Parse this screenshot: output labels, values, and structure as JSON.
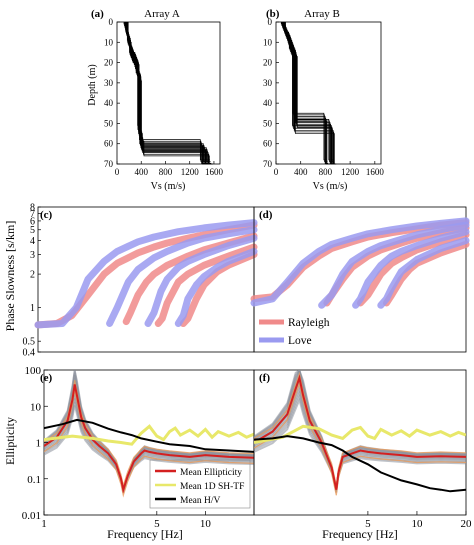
{
  "chart_data": [
    {
      "panel": "(a)",
      "title": "Array A",
      "type": "line",
      "xlabel": "Vs (m/s)",
      "ylabel": "Depth (m)",
      "xlim": [
        0,
        1700
      ],
      "ylim": [
        70,
        0
      ],
      "xticks": [
        0,
        400,
        800,
        1200,
        1600
      ],
      "yticks": [
        0,
        10,
        20,
        30,
        40,
        50,
        60,
        70
      ],
      "profiles": [
        {
          "vs": [
            150,
            170,
            200,
            240,
            330,
            370,
            400,
            1450,
            1520
          ],
          "depth": [
            0,
            4,
            7,
            12,
            18,
            25,
            55,
            62,
            70
          ]
        },
        {
          "vs": [
            160,
            180,
            210,
            260,
            340,
            380,
            420,
            1500,
            1560
          ],
          "depth": [
            0,
            5,
            8,
            13,
            19,
            27,
            57,
            64,
            70
          ]
        },
        {
          "vs": [
            140,
            165,
            195,
            230,
            320,
            365,
            395,
            1400,
            1480
          ],
          "depth": [
            0,
            3,
            6,
            11,
            17,
            24,
            53,
            60,
            70
          ]
        }
      ]
    },
    {
      "panel": "(b)",
      "title": "Array B",
      "type": "line",
      "xlabel": "Vs (m/s)",
      "xlim": [
        0,
        1700
      ],
      "ylim": [
        70,
        0
      ],
      "xticks": [
        0,
        400,
        800,
        1200,
        1600
      ],
      "yticks": [
        0,
        10,
        20,
        30,
        40,
        50,
        60,
        70
      ],
      "profiles": [
        {
          "vs": [
            120,
            170,
            230,
            300,
            800,
            850
          ],
          "depth": [
            0,
            3,
            7,
            13,
            47,
            70
          ]
        },
        {
          "vs": [
            130,
            180,
            240,
            320,
            880,
            900
          ],
          "depth": [
            0,
            4,
            8,
            15,
            50,
            70
          ]
        },
        {
          "vs": [
            110,
            160,
            220,
            290,
            920,
            950
          ],
          "depth": [
            0,
            3,
            7,
            12,
            53,
            70
          ]
        }
      ]
    },
    {
      "panel": "(c)",
      "type": "line",
      "xscale": "log",
      "yscale": "log",
      "xlim": [
        1,
        20
      ],
      "ylim": [
        0.4,
        8
      ],
      "ylabel": "Phase Slowness [s/km]",
      "yticks": [
        0.4,
        0.5,
        1,
        2,
        3,
        4,
        5,
        6,
        7,
        8
      ],
      "series": [
        {
          "name": "Rayleigh",
          "color": "#f08a8a",
          "bands": [
            {
              "x": [
                1,
                1.3,
                1.6,
                2,
                2.5,
                3,
                4,
                5,
                6,
                8,
                10,
                14,
                20
              ],
              "y": [
                0.7,
                0.72,
                0.85,
                1.3,
                2.0,
                2.5,
                3.1,
                3.5,
                3.8,
                4.2,
                4.5,
                5.0,
                5.5
              ]
            },
            {
              "x": [
                3.4,
                3.6,
                4,
                4.5,
                5,
                6,
                8,
                10,
                14,
                20
              ],
              "y": [
                0.75,
                0.9,
                1.3,
                1.7,
                2.0,
                2.4,
                2.9,
                3.3,
                3.8,
                4.4
              ]
            },
            {
              "x": [
                5.3,
                5.6,
                6,
                7,
                8,
                10,
                14,
                20
              ],
              "y": [
                0.72,
                0.8,
                1.1,
                1.7,
                2.0,
                2.4,
                2.9,
                3.5
              ]
            },
            {
              "x": [
                7.5,
                8,
                9,
                10,
                12,
                14,
                20
              ],
              "y": [
                0.72,
                0.8,
                1.2,
                1.6,
                2.1,
                2.4,
                3.0
              ]
            }
          ]
        },
        {
          "name": "Love",
          "color": "#9a9af0",
          "bands": [
            {
              "x": [
                1,
                1.4,
                1.7,
                2,
                2.5,
                3,
                4,
                5,
                7,
                10,
                14,
                20
              ],
              "y": [
                0.7,
                0.72,
                1.0,
                1.8,
                2.6,
                3.2,
                3.9,
                4.3,
                4.8,
                5.2,
                5.5,
                5.8
              ]
            },
            {
              "x": [
                2.7,
                3,
                3.5,
                4,
                5,
                6,
                8,
                10,
                14,
                20
              ],
              "y": [
                0.72,
                1.0,
                1.7,
                2.2,
                2.8,
                3.2,
                3.8,
                4.2,
                4.6,
                5.0
              ]
            },
            {
              "x": [
                4.6,
                5,
                5.5,
                6,
                7,
                8,
                10,
                14,
                20
              ],
              "y": [
                0.72,
                0.9,
                1.4,
                1.8,
                2.3,
                2.6,
                3.0,
                3.6,
                4.2
              ]
            },
            {
              "x": [
                7,
                7.5,
                8,
                9,
                10,
                12,
                14,
                20
              ],
              "y": [
                0.72,
                0.85,
                1.2,
                1.6,
                1.9,
                2.3,
                2.6,
                3.2
              ]
            }
          ]
        }
      ]
    },
    {
      "panel": "(d)",
      "type": "line",
      "xscale": "log",
      "yscale": "log",
      "xlim": [
        1,
        20
      ],
      "ylim": [
        0.4,
        8
      ],
      "legend": {
        "position": "bottom-left",
        "entries": [
          "Rayleigh",
          "Love"
        ]
      },
      "series": [
        {
          "name": "Rayleigh",
          "color": "#f08a8a",
          "bands": [
            {
              "x": [
                1,
                1.3,
                1.6,
                2,
                2.5,
                3,
                4,
                5,
                7,
                10,
                14,
                20
              ],
              "y": [
                1.2,
                1.25,
                1.6,
                2.3,
                2.9,
                3.4,
                3.9,
                4.3,
                4.7,
                5.1,
                5.5,
                5.8
              ]
            },
            {
              "x": [
                2.8,
                3,
                3.5,
                4,
                5,
                6,
                8,
                10,
                14,
                20
              ],
              "y": [
                1.1,
                1.3,
                1.8,
                2.3,
                2.9,
                3.3,
                3.8,
                4.2,
                4.7,
                5.2
              ]
            },
            {
              "x": [
                4.5,
                5,
                6,
                7,
                8,
                10,
                14,
                20
              ],
              "y": [
                1.1,
                1.3,
                2.0,
                2.5,
                2.8,
                3.3,
                3.9,
                4.5
              ]
            },
            {
              "x": [
                6.5,
                7,
                8,
                9,
                10,
                14,
                20
              ],
              "y": [
                1.1,
                1.3,
                1.8,
                2.2,
                2.5,
                3.1,
                3.7
              ]
            }
          ]
        },
        {
          "name": "Love",
          "color": "#9a9af0",
          "bands": [
            {
              "x": [
                1,
                1.3,
                1.6,
                2,
                2.5,
                3,
                4,
                5,
                7,
                10,
                14,
                20
              ],
              "y": [
                1.1,
                1.2,
                1.7,
                2.5,
                3.2,
                3.7,
                4.2,
                4.6,
                5.0,
                5.4,
                5.7,
                6.0
              ]
            },
            {
              "x": [
                2.6,
                3,
                3.5,
                4,
                5,
                6,
                8,
                10,
                14,
                20
              ],
              "y": [
                1.05,
                1.3,
                2.0,
                2.6,
                3.2,
                3.6,
                4.1,
                4.5,
                5.0,
                5.5
              ]
            },
            {
              "x": [
                4.2,
                4.5,
                5,
                6,
                7,
                8,
                10,
                14,
                20
              ],
              "y": [
                1.05,
                1.2,
                1.7,
                2.4,
                2.9,
                3.2,
                3.6,
                4.2,
                4.8
              ]
            },
            {
              "x": [
                6,
                6.5,
                7,
                8,
                10,
                14,
                20
              ],
              "y": [
                1.05,
                1.2,
                1.5,
                2.1,
                2.7,
                3.4,
                4.0
              ]
            }
          ]
        }
      ]
    },
    {
      "panel": "(e)",
      "type": "line",
      "xscale": "log",
      "yscale": "log",
      "xlim": [
        1,
        20
      ],
      "ylim": [
        0.01,
        100
      ],
      "xlabel": "Frequency [Hz]",
      "ylabel": "Ellipticity",
      "xticks": [
        1,
        5,
        10
      ],
      "yticks": [
        0.01,
        0.1,
        1,
        10,
        100
      ],
      "legend": {
        "position": "bottom-center",
        "entries": [
          "Mean Ellipticity",
          "Mean 1D SH-TF",
          "Mean H/V"
        ]
      },
      "series": [
        {
          "name": "Mean Ellipticity",
          "color": "#d42020",
          "x": [
            1,
            1.2,
            1.4,
            1.5,
            1.55,
            1.6,
            1.7,
            1.8,
            2,
            2.2,
            2.5,
            2.8,
            3,
            3.1,
            3.3,
            3.6,
            4,
            4.2,
            4.5,
            5,
            6,
            8,
            10,
            14,
            20
          ],
          "y": [
            0.8,
            1.4,
            4,
            15,
            40,
            20,
            5,
            2.5,
            1.2,
            0.8,
            0.5,
            0.25,
            0.1,
            0.05,
            0.12,
            0.3,
            0.5,
            0.6,
            0.55,
            0.5,
            0.45,
            0.4,
            0.45,
            0.4,
            0.38
          ]
        },
        {
          "name": "Mean 1D SH-TF",
          "color": "#e8e86a",
          "x": [
            1,
            1.5,
            2,
            2.5,
            3,
            3.5,
            4,
            4.5,
            5,
            5.5,
            6,
            6.5,
            7,
            8,
            9,
            10,
            11,
            12,
            14,
            16,
            18,
            20
          ],
          "y": [
            1.2,
            1.5,
            1.3,
            1.1,
            1.0,
            0.9,
            1.8,
            2.8,
            1.5,
            1.2,
            2.0,
            2.5,
            1.6,
            2.2,
            1.5,
            2.3,
            1.4,
            2.0,
            1.5,
            1.9,
            1.4,
            1.7
          ]
        },
        {
          "name": "Mean H/V",
          "color": "#000000",
          "x": [
            1,
            1.3,
            1.6,
            2,
            2.5,
            3,
            3.5,
            4,
            5,
            6,
            8,
            10,
            14,
            20
          ],
          "y": [
            2.5,
            3.2,
            4.2,
            3.5,
            2.4,
            1.9,
            1.6,
            1.3,
            1.05,
            0.9,
            0.8,
            0.65,
            0.6,
            0.55
          ]
        }
      ]
    },
    {
      "panel": "(f)",
      "type": "line",
      "xscale": "log",
      "yscale": "log",
      "xlim": [
        1,
        20
      ],
      "ylim": [
        0.01,
        100
      ],
      "xlabel": "Frequency [Hz]",
      "xticks": [
        1,
        5,
        10,
        20
      ],
      "series": [
        {
          "name": "Mean Ellipticity",
          "color": "#d42020",
          "x": [
            1,
            1.3,
            1.6,
            1.8,
            1.9,
            2,
            2.2,
            2.6,
            3,
            3.2,
            3.3,
            3.5,
            4,
            4.5,
            5,
            6,
            8,
            10,
            14,
            20
          ],
          "y": [
            1.0,
            2.0,
            6,
            30,
            60,
            20,
            4,
            1.0,
            0.2,
            0.05,
            0.15,
            0.4,
            0.5,
            0.6,
            0.55,
            0.5,
            0.45,
            0.4,
            0.42,
            0.4
          ]
        },
        {
          "name": "Mean 1D SH-TF",
          "color": "#e8e86a",
          "x": [
            1,
            1.5,
            2,
            2.5,
            3,
            3.5,
            4,
            4.5,
            5,
            5.5,
            6,
            7,
            8,
            9,
            10,
            12,
            14,
            16,
            18,
            20
          ],
          "y": [
            1.0,
            1.4,
            2.8,
            2.4,
            1.6,
            1.3,
            2.2,
            2.6,
            1.5,
            1.3,
            2.3,
            1.6,
            2.1,
            1.5,
            2.2,
            1.6,
            2.0,
            1.5,
            1.9,
            1.6
          ]
        },
        {
          "name": "Mean H/V",
          "color": "#000000",
          "x": [
            1,
            1.3,
            1.6,
            2,
            2.5,
            3,
            3.5,
            4,
            5,
            6,
            8,
            10,
            12,
            14,
            16,
            20
          ],
          "y": [
            1.2,
            1.3,
            1.5,
            1.3,
            1.0,
            0.85,
            0.6,
            0.4,
            0.25,
            0.15,
            0.09,
            0.07,
            0.055,
            0.05,
            0.045,
            0.05
          ]
        }
      ]
    }
  ]
}
